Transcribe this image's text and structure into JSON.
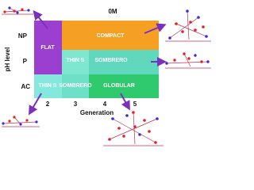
{
  "title": "0M",
  "y_axis_label": "pH level",
  "x_axis_label": "Generation",
  "rows": [
    "NP",
    "P",
    "AC"
  ],
  "columns": [
    "2",
    "3",
    "4",
    "5"
  ],
  "regions": [
    "FLAT",
    "COMPACT",
    "THIN S",
    "SOMBRERO",
    "THIN S",
    "SOMBRERO",
    "GLOBULAR"
  ]
}
